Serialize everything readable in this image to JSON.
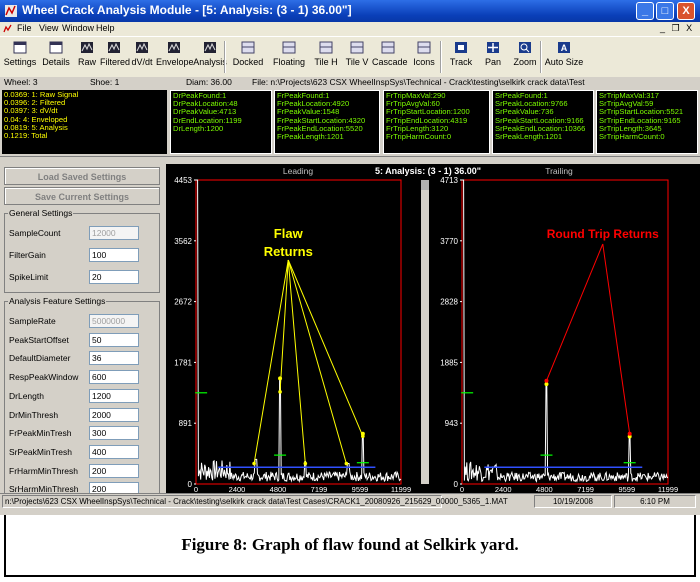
{
  "window": {
    "title": "Wheel Crack Analysis Module - [5: Analysis: (3 - 1) 36.00\"]",
    "minimize": "_",
    "maximize": "□",
    "close": "X",
    "mdi_controls": "_ ❐ X"
  },
  "menu": [
    "File",
    "View",
    "Window",
    "Help"
  ],
  "toolbar": [
    {
      "label": "Settings",
      "icon": "settings-icon"
    },
    {
      "label": "Details",
      "icon": "details-icon"
    },
    {
      "label": "Raw",
      "icon": "raw-icon"
    },
    {
      "label": "Filtered",
      "icon": "filtered-icon"
    },
    {
      "label": "dV/dt",
      "icon": "dvdt-icon"
    },
    {
      "label": "Envelope",
      "icon": "envelope-icon"
    },
    {
      "label": "Analysis",
      "icon": "analysis-icon"
    },
    {
      "label": "Docked",
      "icon": "docked-icon"
    },
    {
      "label": "Floating",
      "icon": "floating-icon"
    },
    {
      "label": "Tile H",
      "icon": "tile-h-icon"
    },
    {
      "label": "Tile V",
      "icon": "tile-v-icon"
    },
    {
      "label": "Cascade",
      "icon": "cascade-icon"
    },
    {
      "label": "Icons",
      "icon": "icons-icon"
    },
    {
      "label": "Track",
      "icon": "track-icon"
    },
    {
      "label": "Pan",
      "icon": "pan-icon"
    },
    {
      "label": "Zoom",
      "icon": "zoom-icon"
    },
    {
      "label": "Auto Size",
      "icon": "auto-size-icon"
    }
  ],
  "info": {
    "wheel": "Wheel: 3",
    "shoe": "Shoe: 1",
    "diam": "Diam: 36.00",
    "file": "File: n:\\Projects\\623 CSX WheelInspSys\\Technical - Crack\\testing\\selkirk crack data\\Test"
  },
  "timings": [
    "0.0369: 1: Raw Signal",
    "0.0396: 2: Filtered",
    "0.0397: 3: dV/dt",
    "0.04: 4: Enveloped",
    "0.0819: 5: Analysis",
    "0.1219: Total"
  ],
  "panels": [
    [
      "DrPeakFound:1",
      "DrPeakLocation:48",
      "DrPeakValue:4713",
      "DrEndLocation:1199",
      "DrLength:1200"
    ],
    [
      "FrPeakFound:1",
      "FrPeakLocation:4920",
      "FrPeakValue:1548",
      "FrPeakStartLocation:4320",
      "FrPeakEndLocation:5520",
      "FrPeakLength:1201"
    ],
    [
      "FrTripMaxVal:290",
      "FrTripAvgVal:60",
      "FrTripStartLocation:1200",
      "FrTripEndLocation:4319",
      "FrTripLength:3120",
      "FrTripHarmCount:0"
    ],
    [
      "SrPeakFound:1",
      "SrPeakLocation:9766",
      "SrPeakValue:736",
      "SrPeakStartLocation:9166",
      "SrPeakEndLocation:10366",
      "SrPeakLength:1201"
    ],
    [
      "SrTripMaxVal:317",
      "SrTripAvgVal:59",
      "SrTripStartLocation:5521",
      "SrTripEndLocation:9165",
      "SrTripLength:3645",
      "SrTripHarmCount:0"
    ]
  ],
  "left": {
    "load_btn": "Load Saved Settings",
    "save_btn": "Save Current Settings",
    "general_title": "General Settings",
    "general": [
      {
        "label": "SampleCount",
        "value": "12000",
        "disabled": true
      },
      {
        "label": "FilterGain",
        "value": "100",
        "disabled": false
      },
      {
        "label": "SpikeLimit",
        "value": "20",
        "disabled": false
      }
    ],
    "analysis_title": "Analysis Feature Settings",
    "analysis": [
      {
        "label": "SampleRate",
        "value": "5000000",
        "disabled": true
      },
      {
        "label": "PeakStartOffset",
        "value": "50",
        "disabled": false
      },
      {
        "label": "DefaultDiameter",
        "value": "36",
        "disabled": false
      },
      {
        "label": "RespPeakWindow",
        "value": "600",
        "disabled": false
      },
      {
        "label": "DrLength",
        "value": "1200",
        "disabled": false
      },
      {
        "label": "DrMinThresh",
        "value": "2000",
        "disabled": false
      },
      {
        "label": "FrPeakMinTresh",
        "value": "300",
        "disabled": false
      },
      {
        "label": "SrPeakMinTresh",
        "value": "400",
        "disabled": false
      },
      {
        "label": "FrHarmMinThresh",
        "value": "200",
        "disabled": false
      },
      {
        "label": "SrHarmMinThresh",
        "value": "200",
        "disabled": false
      }
    ]
  },
  "chart_header": {
    "leading": "Leading",
    "title": "5: Analysis: (3 - 1) 36.00\"",
    "trailing": "Trailing"
  },
  "chart_data": [
    {
      "type": "line",
      "name": "Leading",
      "ylim": [
        0,
        4453
      ],
      "xlim": [
        0,
        11999
      ],
      "yticks": [
        "4453",
        "3562",
        "2672",
        "1781",
        "891",
        "0"
      ],
      "xticks": [
        "0",
        "2400",
        "4800",
        "7199",
        "9599",
        "11999"
      ],
      "peaks": [
        {
          "x": 48,
          "y": 4453
        },
        {
          "x": 4920,
          "y": 1548
        },
        {
          "x": 9766,
          "y": 736
        },
        {
          "x": 3500,
          "y": 360
        },
        {
          "x": 6400,
          "y": 330
        },
        {
          "x": 8900,
          "y": 300
        }
      ],
      "annotation": {
        "text1": "Flaw",
        "text2": "Returns",
        "color": "#ffff00"
      }
    },
    {
      "type": "line",
      "name": "Trailing",
      "ylim": [
        0,
        4713
      ],
      "xlim": [
        0,
        11999
      ],
      "yticks": [
        "4713",
        "3770",
        "2828",
        "1885",
        "943",
        "0"
      ],
      "xticks": [
        "0",
        "2400",
        "4800",
        "7199",
        "9599",
        "11999"
      ],
      "peaks": [
        {
          "x": 48,
          "y": 4713
        },
        {
          "x": 4920,
          "y": 1548
        },
        {
          "x": 9766,
          "y": 736
        }
      ],
      "annotation": {
        "text1": "Round Trip Returns",
        "text2": "",
        "color": "#ff0000"
      }
    }
  ],
  "status": {
    "path": "n:\\Projects\\623 CSX WheelInspSys\\Technical - Crack\\testing\\selkirk crack data\\Test Cases\\CRACK1_20080926_215629_00000_5365_1.MAT",
    "date": "10/19/2008",
    "time": "6:10 PM"
  },
  "caption": "Figure 8:  Graph of flaw found at Selkirk yard."
}
